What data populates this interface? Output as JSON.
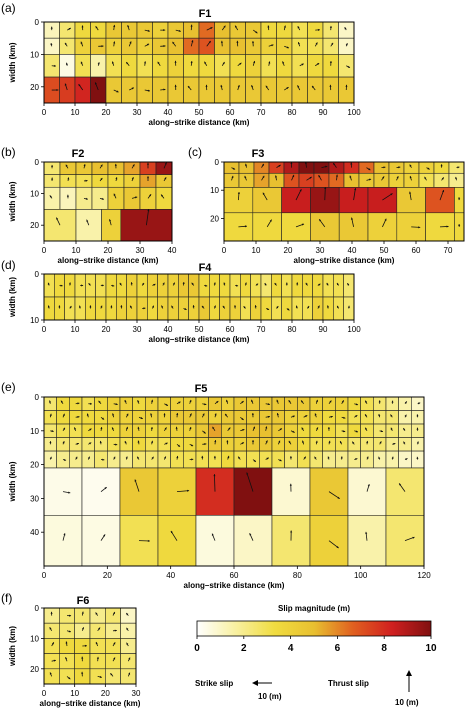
{
  "panels": [
    {
      "id": "a",
      "label": "(a)",
      "title": "F1",
      "xlabel": "along–strike distance (km)",
      "ylabel": "width (km)",
      "xticks": [
        "0",
        "10",
        "20",
        "30",
        "40",
        "50",
        "60",
        "70",
        "80",
        "90",
        "100"
      ],
      "yticks": [
        "0",
        "10",
        "20"
      ],
      "x_range": [
        0,
        100
      ],
      "y_range": [
        0,
        25
      ],
      "rows": [
        {
          "y0": 0,
          "y1": 5,
          "slip": [
            1.2,
            2.5,
            3.5,
            3.5,
            4.5,
            4.5,
            4.5,
            4.0,
            4.5,
            5.0,
            6.5,
            5.0,
            4.5,
            4.5,
            3.5,
            3.5,
            3.0,
            3.5,
            2.5,
            1.0
          ]
        },
        {
          "y0": 5,
          "y1": 10,
          "slip": [
            1.0,
            2.5,
            4.0,
            4.5,
            4.0,
            4.5,
            4.0,
            4.5,
            5.0,
            6.5,
            7.0,
            5.0,
            5.0,
            4.5,
            4.0,
            4.0,
            3.0,
            3.0,
            2.5,
            1.0
          ]
        },
        {
          "y0": 10,
          "y1": 17,
          "slip": [
            2.5,
            0.5,
            3.0,
            1.5,
            3.0,
            3.5,
            3.0,
            3.5,
            4.0,
            3.5,
            3.5,
            3.0,
            3.5,
            4.0,
            3.0,
            3.5,
            3.0,
            3.5,
            3.5,
            2.5
          ]
        },
        {
          "y0": 17,
          "y1": 25,
          "slip": [
            7.2,
            7.6,
            8.2,
            10.0,
            4.5,
            4.5,
            4.5,
            4.5,
            4.5,
            4.5,
            4.5,
            4.5,
            4.5,
            4.5,
            4.5,
            4.5,
            4.5,
            4.5,
            4.5,
            4.5
          ]
        }
      ]
    },
    {
      "id": "b",
      "label": "(b)",
      "title": "F2",
      "xlabel": "along–strike distance (km)",
      "ylabel": "width (km)",
      "xticks": [
        "0",
        "10",
        "20",
        "30",
        "40"
      ],
      "yticks": [
        "0",
        "10",
        "20"
      ],
      "x_range": [
        0,
        40
      ],
      "y_range": [
        0,
        25
      ],
      "rows": [
        {
          "y0": 0,
          "y1": 4,
          "slip": [
            2.5,
            4.5,
            4.5,
            5.0,
            5.0,
            5.5,
            7.5,
            9.5
          ]
        },
        {
          "y0": 4,
          "y1": 8,
          "slip": [
            2.5,
            3.0,
            3.0,
            3.5,
            3.5,
            4.0,
            5.5,
            4.5
          ]
        },
        {
          "y0": 8,
          "y1": 15,
          "slip": [
            1.5,
            1.2,
            2.0,
            2.0,
            4.0,
            4.5,
            4.0,
            3.5
          ]
        },
        {
          "y0": 15,
          "y1": 25,
          "cells": [
            [
              0,
              10,
              2.5
            ],
            [
              10,
              18,
              1.5
            ],
            [
              18,
              24,
              4.0
            ],
            [
              24,
              40,
              9.5
            ]
          ]
        }
      ]
    },
    {
      "id": "c",
      "label": "(c)",
      "title": "F3",
      "xlabel": "along–strike distance (km)",
      "ylabel": "",
      "xticks": [
        "0",
        "10",
        "20",
        "30",
        "40",
        "50",
        "60",
        "70"
      ],
      "yticks": [
        "0",
        "10",
        "20"
      ],
      "x_range": [
        0,
        75
      ],
      "y_range": [
        0,
        28
      ],
      "rows": [
        {
          "y0": 0,
          "y1": 4,
          "slip": [
            5.0,
            5.0,
            6.0,
            7.5,
            9.0,
            10.0,
            10.0,
            9.0,
            8.0,
            6.5,
            5.0,
            4.5,
            4.0,
            4.0,
            3.5,
            2.5
          ]
        },
        {
          "y0": 4,
          "y1": 9,
          "slip": [
            4.5,
            4.5,
            5.5,
            5.0,
            7.0,
            7.5,
            7.0,
            6.5,
            5.0,
            4.5,
            4.5,
            4.0,
            4.0,
            3.0,
            2.5,
            2.0
          ]
        },
        {
          "y0": 9,
          "y1": 18,
          "cells": [
            [
              0,
              9,
              4.0
            ],
            [
              9,
              18,
              4.5
            ],
            [
              18,
              27,
              8.5
            ],
            [
              27,
              36,
              9.5
            ],
            [
              36,
              45,
              8.5
            ],
            [
              45,
              54,
              8.5
            ],
            [
              54,
              63,
              4.5
            ],
            [
              63,
              72,
              7.0
            ],
            [
              72,
              75,
              3.5
            ]
          ]
        },
        {
          "y0": 18,
          "y1": 28,
          "cells": [
            [
              0,
              9,
              3.5
            ],
            [
              9,
              18,
              3.5
            ],
            [
              18,
              27,
              3.5
            ],
            [
              27,
              36,
              4.5
            ],
            [
              36,
              45,
              4.5
            ],
            [
              45,
              54,
              4.0
            ],
            [
              54,
              63,
              4.0
            ],
            [
              63,
              72,
              3.5
            ],
            [
              72,
              75,
              3.5
            ]
          ]
        }
      ]
    },
    {
      "id": "d",
      "label": "(d)",
      "title": "F4",
      "xlabel": "along–strike distance (km)",
      "ylabel": "width (km)",
      "xticks": [
        "0",
        "10",
        "20",
        "30",
        "40",
        "50",
        "60",
        "70",
        "80",
        "90",
        "100"
      ],
      "yticks": [
        "0",
        "10"
      ],
      "x_range": [
        0,
        100
      ],
      "y_range": [
        0,
        10
      ],
      "rows": [
        {
          "y0": 0,
          "y1": 5,
          "slip": [
            3.0,
            3.5,
            3.5,
            3.0,
            3.0,
            3.0,
            3.5,
            3.5,
            4.0,
            3.5,
            4.0,
            4.0,
            4.0,
            4.5,
            4.5,
            3.5,
            3.5,
            3.5,
            3.0,
            3.5,
            3.0,
            2.5,
            3.5,
            3.0,
            3.5,
            3.5,
            3.5,
            3.0,
            3.0,
            2.5
          ]
        },
        {
          "y0": 5,
          "y1": 10,
          "slip": [
            3.5,
            3.5,
            3.0,
            3.0,
            3.5,
            3.5,
            3.5,
            4.0,
            4.0,
            4.0,
            3.5,
            4.0,
            4.0,
            4.0,
            4.0,
            4.5,
            3.5,
            4.0,
            4.0,
            3.0,
            4.0,
            3.5,
            3.0,
            3.5,
            3.0,
            3.0,
            4.0,
            3.5,
            3.0,
            2.5
          ]
        }
      ]
    },
    {
      "id": "e",
      "label": "(e)",
      "title": "F5",
      "xlabel": "along–strike distance (km)",
      "ylabel": "width (km)",
      "xticks": [
        "0",
        "20",
        "40",
        "60",
        "80",
        "100",
        "120"
      ],
      "yticks": [
        "0",
        "10",
        "20",
        "30",
        "40"
      ],
      "x_range": [
        0,
        120
      ],
      "y_range": [
        0,
        50
      ],
      "rows": [
        {
          "y0": 0,
          "y1": 4,
          "slip": [
            2.5,
            3.5,
            3.5,
            3.0,
            3.5,
            4.0,
            4.0,
            3.5,
            4.0,
            4.0,
            4.0,
            4.0,
            4.0,
            4.5,
            4.0,
            4.5,
            4.5,
            4.5,
            4.5,
            4.5,
            4.5,
            4.0,
            4.0,
            4.0,
            3.5,
            3.0,
            2.5,
            2.0,
            1.5,
            1.0
          ]
        },
        {
          "y0": 4,
          "y1": 8,
          "slip": [
            3.0,
            3.5,
            3.5,
            3.5,
            3.5,
            4.0,
            4.0,
            4.0,
            4.0,
            4.0,
            4.5,
            4.5,
            4.5,
            4.0,
            4.5,
            4.5,
            4.5,
            4.5,
            4.5,
            4.0,
            4.0,
            4.0,
            3.5,
            3.5,
            3.0,
            3.0,
            2.5,
            2.5,
            1.5,
            1.5
          ]
        },
        {
          "y0": 8,
          "y1": 12,
          "slip": [
            2.5,
            3.0,
            3.0,
            3.5,
            3.5,
            3.5,
            4.0,
            4.0,
            3.5,
            4.0,
            4.0,
            4.0,
            4.5,
            5.5,
            4.5,
            4.5,
            5.0,
            5.0,
            4.5,
            4.0,
            3.5,
            3.5,
            3.5,
            3.0,
            3.5,
            3.0,
            2.5,
            2.5,
            2.0,
            2.0
          ]
        },
        {
          "y0": 12,
          "y1": 16,
          "slip": [
            2.0,
            2.5,
            2.5,
            2.5,
            2.5,
            3.0,
            3.0,
            3.5,
            3.0,
            3.0,
            3.5,
            3.5,
            4.0,
            4.5,
            4.0,
            4.0,
            4.5,
            4.5,
            4.0,
            4.0,
            3.5,
            3.0,
            3.0,
            3.0,
            2.5,
            2.5,
            2.5,
            2.0,
            2.0,
            1.5
          ]
        },
        {
          "y0": 16,
          "y1": 21,
          "slip": [
            1.5,
            2.0,
            2.0,
            2.0,
            2.5,
            2.0,
            2.0,
            2.5,
            2.5,
            2.5,
            3.0,
            3.0,
            3.0,
            3.0,
            3.5,
            3.0,
            3.0,
            3.0,
            3.0,
            2.5,
            3.0,
            2.5,
            2.0,
            2.0,
            2.0,
            2.0,
            1.5,
            1.5,
            1.0,
            1.0
          ]
        },
        {
          "y0": 21,
          "y1": 35,
          "slip": [
            0.4,
            0.3,
            4.5,
            4.0,
            8.0,
            10.0,
            0.8,
            4.5,
            0.8,
            2.5
          ]
        },
        {
          "y0": 35,
          "y1": 50,
          "slip": [
            0.6,
            0.5,
            3.0,
            3.5,
            0.6,
            1.0,
            2.5,
            4.0,
            1.5,
            2.5
          ]
        }
      ]
    },
    {
      "id": "f",
      "label": "(f)",
      "title": "F6",
      "xlabel": "along–strike distance (km)",
      "ylabel": "width (km)",
      "xticks": [
        "0",
        "10",
        "20",
        "30"
      ],
      "yticks": [
        "0",
        "10",
        "20"
      ],
      "x_range": [
        0,
        30
      ],
      "y_range": [
        0,
        25
      ],
      "rows": [
        {
          "y0": 0,
          "y1": 5,
          "slip": [
            2.0,
            2.5,
            2.5,
            2.0,
            2.5,
            1.0
          ]
        },
        {
          "y0": 5,
          "y1": 10,
          "slip": [
            2.5,
            2.5,
            2.0,
            2.5,
            2.0,
            1.5
          ]
        },
        {
          "y0": 10,
          "y1": 15,
          "slip": [
            3.0,
            3.5,
            3.5,
            3.0,
            3.0,
            2.0
          ]
        },
        {
          "y0": 15,
          "y1": 20,
          "slip": [
            3.0,
            3.0,
            3.5,
            3.0,
            3.0,
            2.5
          ]
        },
        {
          "y0": 20,
          "y1": 25,
          "slip": [
            3.0,
            3.0,
            3.5,
            3.0,
            2.5,
            2.5
          ]
        }
      ]
    }
  ],
  "colorbar": {
    "title": "Slip magnitude (m)",
    "ticks": [
      "0",
      "2",
      "4",
      "6",
      "8",
      "10"
    ],
    "range": [
      0,
      10
    ],
    "stops": [
      "#ffffff",
      "#f8f0a0",
      "#f0dc40",
      "#e8c030",
      "#e06020",
      "#d02020",
      "#801010"
    ]
  },
  "legend": {
    "strike_label": "Strike slip",
    "strike_scale": "10 (m)",
    "thrust_label": "Thrust slip",
    "thrust_scale": "10 (m)"
  }
}
